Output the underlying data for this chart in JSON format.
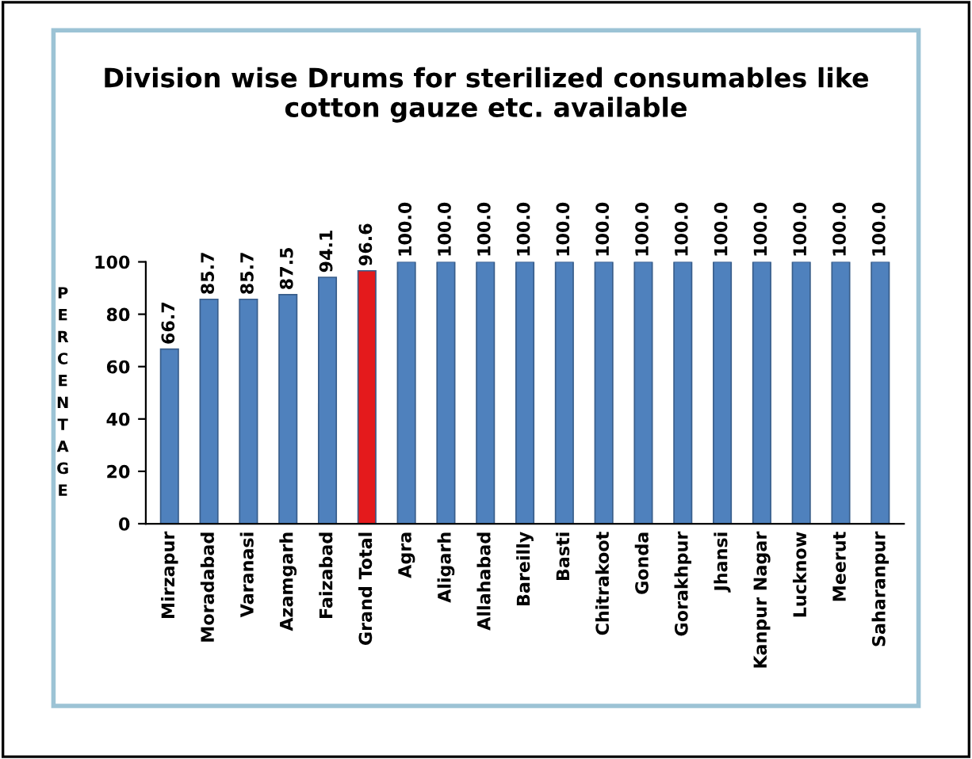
{
  "chart_data": {
    "type": "bar",
    "title": "Division wise Drums for sterilized consumables like\ncotton gauze etc. available",
    "ylabel": "PERCENTAGE",
    "categories": [
      "Mirzapur",
      "Moradabad",
      "Varanasi",
      "Azamgarh",
      "Faizabad",
      "Grand Total",
      "Agra",
      "Aligarh",
      "Allahabad",
      "Bareilly",
      "Basti",
      "Chitrakoot",
      "Gonda",
      "Gorakhpur",
      "Jhansi",
      "Kanpur Nagar",
      "Lucknow",
      "Meerut",
      "Saharanpur"
    ],
    "values": [
      66.7,
      85.7,
      85.7,
      87.5,
      94.1,
      96.6,
      100.0,
      100.0,
      100.0,
      100.0,
      100.0,
      100.0,
      100.0,
      100.0,
      100.0,
      100.0,
      100.0,
      100.0,
      100.0
    ],
    "colors": [
      "#4f81bd",
      "#4f81bd",
      "#4f81bd",
      "#4f81bd",
      "#4f81bd",
      "#e41a1c",
      "#4f81bd",
      "#4f81bd",
      "#4f81bd",
      "#4f81bd",
      "#4f81bd",
      "#4f81bd",
      "#4f81bd",
      "#4f81bd",
      "#4f81bd",
      "#4f81bd",
      "#4f81bd",
      "#4f81bd",
      "#4f81bd"
    ],
    "value_labels": [
      "66.7",
      "85.7",
      "85.7",
      "87.5",
      "94.1",
      "96.6",
      "100.0",
      "100.0",
      "100.0",
      "100.0",
      "100.0",
      "100.0",
      "100.0",
      "100.0",
      "100.0",
      "100.0",
      "100.0",
      "100.0",
      "100.0"
    ],
    "ylim": [
      0,
      100
    ],
    "yticks": [
      0,
      20,
      40,
      60,
      80,
      100
    ],
    "grid": false,
    "legend": false
  }
}
